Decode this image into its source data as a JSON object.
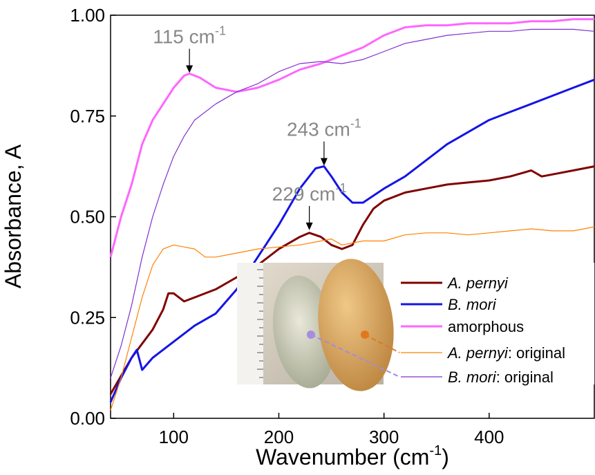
{
  "chart_data": {
    "type": "line",
    "y_label": "Absorbance, A",
    "x_label": [
      "Wavenumber (cm",
      "-1",
      ")"
    ],
    "xlim": [
      40,
      500
    ],
    "ylim": [
      0,
      1
    ],
    "xticks": [
      100,
      200,
      300,
      400
    ],
    "yticks": [
      {
        "value": 0,
        "label": "0.00"
      },
      {
        "value": 0.25,
        "label": "0.25"
      },
      {
        "value": 0.5,
        "label": "0.50"
      },
      {
        "value": 0.75,
        "label": "0.75"
      },
      {
        "value": 1,
        "label": "1.00"
      }
    ],
    "series": [
      {
        "name": "A. pernyi",
        "color": "#800000",
        "width": 3,
        "x": [
          40,
          60,
          80,
          90,
          95,
          100,
          110,
          120,
          140,
          160,
          180,
          200,
          220,
          229,
          240,
          250,
          260,
          270,
          280,
          290,
          300,
          320,
          340,
          360,
          380,
          400,
          420,
          440,
          450,
          460,
          480,
          500
        ],
        "values": [
          0.06,
          0.15,
          0.22,
          0.27,
          0.31,
          0.31,
          0.29,
          0.3,
          0.32,
          0.35,
          0.38,
          0.42,
          0.45,
          0.46,
          0.45,
          0.43,
          0.42,
          0.43,
          0.48,
          0.52,
          0.54,
          0.56,
          0.57,
          0.58,
          0.585,
          0.59,
          0.6,
          0.615,
          0.6,
          0.605,
          0.615,
          0.625
        ]
      },
      {
        "name": "B. mori",
        "color": "#1414e6",
        "width": 3,
        "x": [
          40,
          50,
          60,
          65,
          70,
          80,
          100,
          120,
          140,
          160,
          180,
          200,
          220,
          235,
          243,
          250,
          260,
          270,
          280,
          300,
          320,
          340,
          360,
          380,
          400,
          420,
          440,
          460,
          480,
          500
        ],
        "values": [
          0.04,
          0.1,
          0.15,
          0.17,
          0.12,
          0.15,
          0.19,
          0.23,
          0.26,
          0.32,
          0.4,
          0.48,
          0.57,
          0.62,
          0.625,
          0.6,
          0.56,
          0.535,
          0.535,
          0.57,
          0.6,
          0.64,
          0.68,
          0.71,
          0.74,
          0.76,
          0.78,
          0.8,
          0.82,
          0.84
        ]
      },
      {
        "name": "amorphous",
        "color": "#ff66ff",
        "width": 3,
        "x": [
          40,
          50,
          60,
          70,
          80,
          90,
          100,
          110,
          115,
          125,
          140,
          160,
          180,
          200,
          220,
          240,
          260,
          280,
          300,
          320,
          340,
          360,
          380,
          400,
          420,
          440,
          460,
          480,
          500
        ],
        "values": [
          0.4,
          0.5,
          0.58,
          0.68,
          0.74,
          0.78,
          0.82,
          0.85,
          0.855,
          0.845,
          0.82,
          0.81,
          0.82,
          0.84,
          0.865,
          0.88,
          0.9,
          0.92,
          0.95,
          0.97,
          0.975,
          0.975,
          0.98,
          0.98,
          0.98,
          0.985,
          0.985,
          0.99,
          0.99
        ]
      },
      {
        "name": "A. pernyi: original",
        "color": "#ff8000",
        "width": 1.2,
        "x": [
          40,
          50,
          60,
          70,
          80,
          90,
          100,
          110,
          120,
          130,
          140,
          160,
          180,
          200,
          220,
          240,
          250,
          260,
          280,
          300,
          320,
          340,
          360,
          380,
          400,
          420,
          440,
          460,
          480,
          500
        ],
        "values": [
          0.02,
          0.1,
          0.2,
          0.3,
          0.38,
          0.42,
          0.43,
          0.425,
          0.42,
          0.4,
          0.4,
          0.41,
          0.42,
          0.425,
          0.43,
          0.44,
          0.445,
          0.43,
          0.44,
          0.44,
          0.455,
          0.46,
          0.46,
          0.455,
          0.46,
          0.465,
          0.47,
          0.465,
          0.465,
          0.475
        ]
      },
      {
        "name": "B. mori: original",
        "color": "#7f2fd0",
        "width": 1.2,
        "x": [
          40,
          50,
          60,
          70,
          80,
          90,
          100,
          110,
          120,
          140,
          160,
          180,
          200,
          220,
          240,
          260,
          280,
          300,
          320,
          340,
          360,
          380,
          400,
          420,
          440,
          460,
          480,
          500
        ],
        "values": [
          0.1,
          0.18,
          0.28,
          0.4,
          0.5,
          0.58,
          0.65,
          0.7,
          0.74,
          0.78,
          0.81,
          0.83,
          0.86,
          0.88,
          0.885,
          0.88,
          0.89,
          0.91,
          0.93,
          0.94,
          0.95,
          0.955,
          0.96,
          0.96,
          0.965,
          0.965,
          0.965,
          0.96
        ]
      }
    ],
    "annotations": [
      {
        "text": [
          "115 cm",
          "-1"
        ],
        "x": 115,
        "y": 0.855
      },
      {
        "text": [
          "243 cm",
          "-1"
        ],
        "x": 243,
        "y": 0.625
      },
      {
        "text": [
          "229 cm",
          "-1"
        ],
        "x": 229,
        "y": 0.465
      }
    ]
  }
}
